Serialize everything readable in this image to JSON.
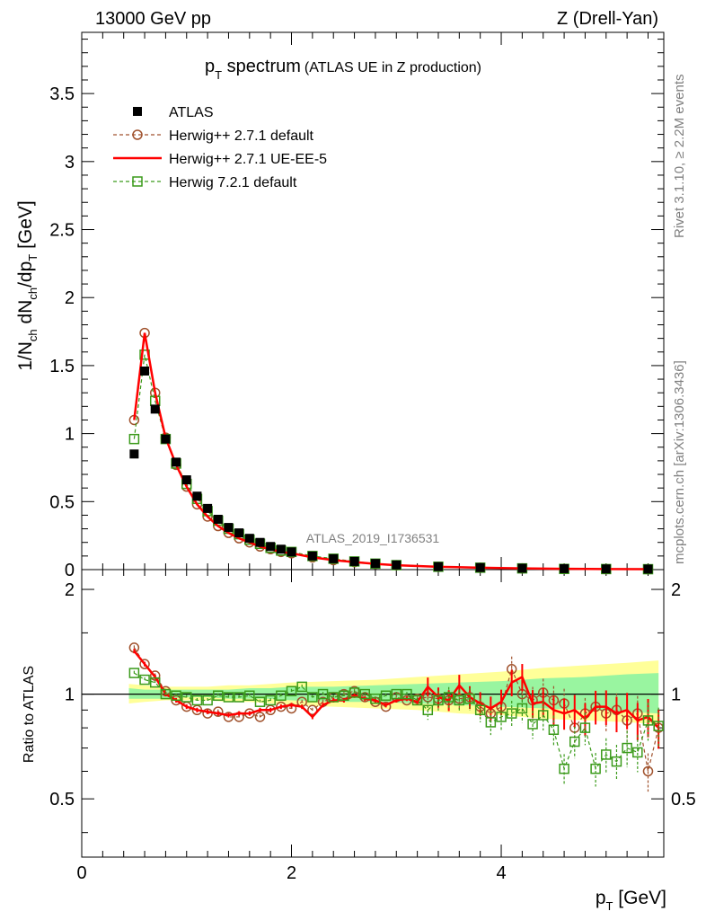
{
  "header": {
    "left": "13000 GeV pp",
    "right": "Z (Drell-Yan)"
  },
  "side": {
    "rivet": "Rivet 3.1.10, ≥ 2.2M events",
    "mcplots": "mcplots.cern.ch [arXiv:1306.3436]"
  },
  "watermark": "ATLAS_2019_I1736531",
  "title": {
    "main": "p",
    "main_sub": "T",
    "main_rest": " spectrum",
    "small": "(ATLAS UE in Z production)"
  },
  "axes": {
    "ylabel_top": "1/N_ch dN_ch/dp_T [GeV]",
    "ylabel_bottom": "Ratio to ATLAS",
    "xlabel": "p_T [GeV]"
  },
  "chart_data": [
    {
      "type": "scatter",
      "panel": "main",
      "xlim": [
        0,
        5.55
      ],
      "ylim": [
        0,
        3.95
      ],
      "yticks": [
        0,
        0.5,
        1,
        1.5,
        2,
        2.5,
        3,
        3.5
      ],
      "ytick_labels": [
        "0",
        "0.5",
        "1",
        "1.5",
        "2",
        "2.5",
        "3",
        "3.5"
      ],
      "legend_position": "top-left",
      "x": [
        0.5,
        0.6,
        0.7,
        0.8,
        0.9,
        1.0,
        1.1,
        1.2,
        1.3,
        1.4,
        1.5,
        1.6,
        1.7,
        1.8,
        1.9,
        2.0,
        2.2,
        2.4,
        2.6,
        2.8,
        3.0,
        3.4,
        3.8,
        4.2,
        4.6,
        5.0,
        5.4
      ],
      "series": [
        {
          "name": "ATLAS",
          "color": "#000000",
          "marker": "filled-square",
          "values": [
            0.85,
            1.46,
            1.18,
            0.96,
            0.79,
            0.66,
            0.54,
            0.45,
            0.37,
            0.31,
            0.27,
            0.23,
            0.2,
            0.17,
            0.15,
            0.13,
            0.1,
            0.08,
            0.06,
            0.045,
            0.034,
            0.022,
            0.015,
            0.01,
            0.007,
            0.005,
            0.004
          ]
        },
        {
          "name": "Herwig++ 2.7.1 default",
          "color": "#a0522d",
          "marker": "open-circle",
          "line": "dashed",
          "values": [
            1.1,
            1.74,
            1.3,
            0.97,
            0.77,
            0.61,
            0.48,
            0.39,
            0.32,
            0.27,
            0.23,
            0.2,
            0.17,
            0.15,
            0.13,
            0.12,
            0.09,
            0.07,
            0.055,
            0.042,
            0.032,
            0.021,
            0.014,
            0.009,
            0.006,
            0.004,
            0.003
          ]
        },
        {
          "name": "Herwig++ 2.7.1 UE-EE-5",
          "color": "#ff0000",
          "marker": "none",
          "line": "solid",
          "values": [
            1.1,
            1.74,
            1.3,
            0.97,
            0.77,
            0.61,
            0.48,
            0.39,
            0.32,
            0.27,
            0.23,
            0.2,
            0.17,
            0.15,
            0.13,
            0.12,
            0.09,
            0.07,
            0.055,
            0.042,
            0.032,
            0.021,
            0.014,
            0.009,
            0.006,
            0.004,
            0.003
          ]
        },
        {
          "name": "Herwig 7.2.1 default",
          "color": "#3a9a1a",
          "marker": "open-square",
          "line": "dashed",
          "values": [
            0.96,
            1.58,
            1.24,
            0.96,
            0.78,
            0.63,
            0.52,
            0.43,
            0.36,
            0.3,
            0.26,
            0.22,
            0.19,
            0.16,
            0.14,
            0.13,
            0.1,
            0.08,
            0.06,
            0.044,
            0.033,
            0.021,
            0.014,
            0.009,
            0.005,
            0.004,
            0.003
          ]
        }
      ]
    },
    {
      "type": "scatter",
      "panel": "ratio",
      "xlim": [
        0,
        5.55
      ],
      "ylim": [
        0.34,
        2.28
      ],
      "log_y": true,
      "yticks": [
        0.5,
        1,
        2
      ],
      "ytick_labels": [
        "0.5",
        "1",
        "2"
      ],
      "xticks": [
        0,
        2,
        4
      ],
      "xtick_labels": [
        "0",
        "2",
        "4"
      ],
      "band_x": [
        0.45,
        0.6,
        0.8,
        1.0,
        1.2,
        1.4,
        1.6,
        1.8,
        2.0,
        2.4,
        2.8,
        3.2,
        3.6,
        4.0,
        4.4,
        4.8,
        5.2,
        5.5
      ],
      "band_yellow_hi": [
        1.07,
        1.06,
        1.05,
        1.05,
        1.05,
        1.06,
        1.06,
        1.07,
        1.08,
        1.09,
        1.1,
        1.12,
        1.14,
        1.16,
        1.19,
        1.21,
        1.23,
        1.25
      ],
      "band_yellow_lo": [
        0.94,
        0.95,
        0.96,
        0.96,
        0.96,
        0.95,
        0.95,
        0.94,
        0.93,
        0.92,
        0.91,
        0.9,
        0.88,
        0.87,
        0.85,
        0.84,
        0.83,
        0.82
      ],
      "band_green_hi": [
        1.04,
        1.03,
        1.03,
        1.03,
        1.03,
        1.03,
        1.04,
        1.04,
        1.05,
        1.05,
        1.06,
        1.07,
        1.08,
        1.09,
        1.11,
        1.12,
        1.14,
        1.15
      ],
      "band_green_lo": [
        0.97,
        0.97,
        0.97,
        0.98,
        0.98,
        0.97,
        0.97,
        0.97,
        0.96,
        0.95,
        0.95,
        0.94,
        0.93,
        0.92,
        0.91,
        0.9,
        0.89,
        0.88
      ],
      "x": [
        0.5,
        0.6,
        0.7,
        0.8,
        0.9,
        1.0,
        1.1,
        1.2,
        1.3,
        1.4,
        1.5,
        1.6,
        1.7,
        1.8,
        1.9,
        2.0,
        2.1,
        2.2,
        2.3,
        2.4,
        2.5,
        2.6,
        2.7,
        2.8,
        2.9,
        3.0,
        3.1,
        3.2,
        3.3,
        3.4,
        3.5,
        3.6,
        3.7,
        3.8,
        3.9,
        4.0,
        4.1,
        4.2,
        4.3,
        4.4,
        4.5,
        4.6,
        4.7,
        4.8,
        4.9,
        5.0,
        5.1,
        5.2,
        5.3,
        5.4,
        5.5
      ],
      "series": [
        {
          "name": "Herwig++ 2.7.1 default",
          "color": "#a0522d",
          "values": [
            1.36,
            1.22,
            1.13,
            1.02,
            0.96,
            0.92,
            0.9,
            0.88,
            0.89,
            0.86,
            0.86,
            0.88,
            0.86,
            0.9,
            0.92,
            0.91,
            0.95,
            0.9,
            0.95,
            0.98,
            1.0,
            1.02,
            0.98,
            0.95,
            0.92,
            0.98,
            0.96,
            0.97,
            0.98,
            0.97,
            0.96,
            0.97,
            0.98,
            0.92,
            0.88,
            0.92,
            1.18,
            1.0,
            0.96,
            1.01,
            0.96,
            0.94,
            0.8,
            0.88,
            0.92,
            0.88,
            0.9,
            0.84,
            0.88,
            0.6,
            0.8
          ]
        },
        {
          "name": "Herwig++ 2.7.1 UE-EE-5",
          "color": "#ff0000",
          "values": [
            1.33,
            1.22,
            1.12,
            1.0,
            0.96,
            0.92,
            0.9,
            0.89,
            0.88,
            0.87,
            0.88,
            0.88,
            0.9,
            0.9,
            0.92,
            0.93,
            0.92,
            0.86,
            0.93,
            0.96,
            0.96,
            0.99,
            0.97,
            0.96,
            0.93,
            0.96,
            0.97,
            0.95,
            1.05,
            0.98,
            0.96,
            1.06,
            0.98,
            0.94,
            0.91,
            0.95,
            1.08,
            1.12,
            0.94,
            0.95,
            0.9,
            0.88,
            0.9,
            0.85,
            0.92,
            0.92,
            0.88,
            0.9,
            0.84,
            0.86,
            0.8
          ]
        },
        {
          "name": "Herwig 7.2.1 default",
          "color": "#3a9a1a",
          "values": [
            1.15,
            1.1,
            1.08,
            1.0,
            0.99,
            0.98,
            0.96,
            0.96,
            0.99,
            0.98,
            0.98,
            0.99,
            0.95,
            0.96,
            0.99,
            1.02,
            1.05,
            0.98,
            1.0,
            0.98,
            0.99,
            1.01,
            1.0,
            0.97,
            0.99,
            1.0,
            1.0,
            0.96,
            0.9,
            0.96,
            0.98,
            0.96,
            0.97,
            0.9,
            0.83,
            0.86,
            0.88,
            0.91,
            0.82,
            0.87,
            0.79,
            0.61,
            0.73,
            0.8,
            0.61,
            0.67,
            0.64,
            0.7,
            0.68,
            0.84,
            0.81
          ]
        }
      ]
    }
  ]
}
